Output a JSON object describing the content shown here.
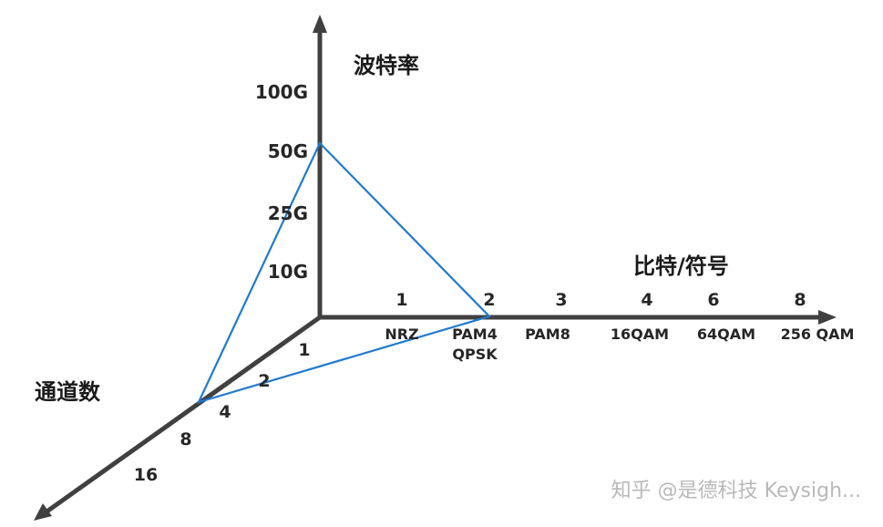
{
  "axes": {
    "vertical": {
      "title": "波特率",
      "ticks": [
        "100G",
        "50G",
        "25G",
        "10G"
      ]
    },
    "horizontal": {
      "title": "比特/符号",
      "numbers": [
        "1",
        "2",
        "3",
        "4",
        "6",
        "8"
      ],
      "modulations": [
        "NRZ",
        "PAM4",
        "QPSK",
        "PAM8",
        "16QAM",
        "64QAM",
        "256 QAM"
      ]
    },
    "diagonal": {
      "title": "通道数",
      "ticks": [
        "1",
        "2",
        "4",
        "8",
        "16"
      ]
    }
  },
  "triangle": {
    "baud_rate": "50G",
    "bits_per_symbol": "2",
    "channels": "4"
  },
  "colors": {
    "axis": "#404040",
    "triangle": "#1f7ad1"
  },
  "watermark": "知乎 @是德科技 Keysigh..."
}
